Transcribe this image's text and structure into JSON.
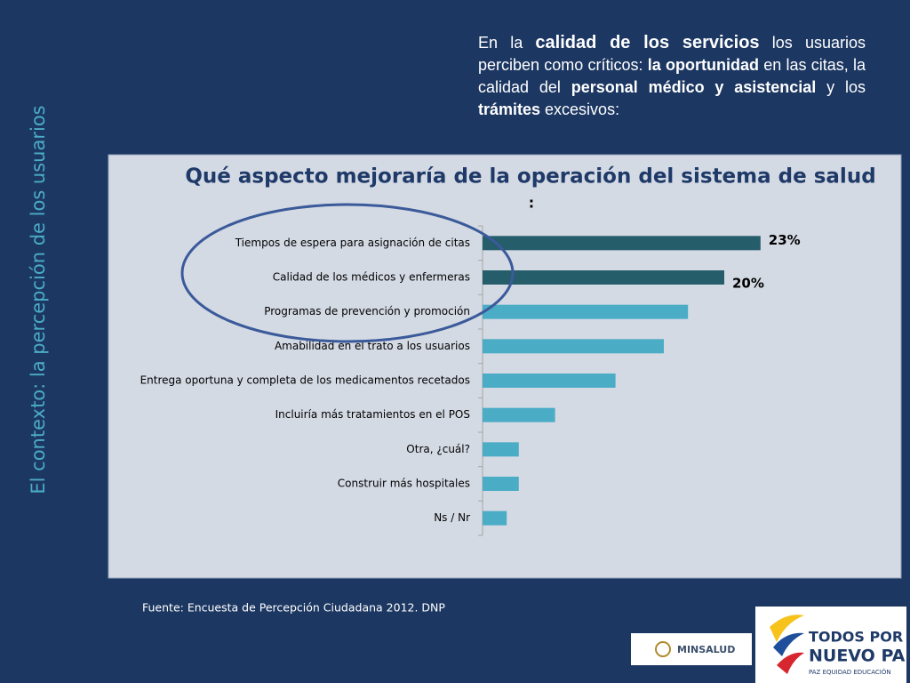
{
  "side_title": "El contexto: la percepción de los usuarios",
  "intro": {
    "segments": [
      {
        "text": "En la ",
        "bold": false
      },
      {
        "text": "calidad de los servicios",
        "bold": true
      },
      {
        "text": " los usuarios perciben  como críticos:  ",
        "bold": false
      },
      {
        "text": "la oportunidad",
        "bold": true
      },
      {
        "text": " en las citas, la calidad del ",
        "bold": false
      },
      {
        "text": "personal médico y asistencial",
        "bold": true
      },
      {
        "text": " y los ",
        "bold": false
      },
      {
        "text": "trámites",
        "bold": true
      },
      {
        "text": " excesivos:",
        "bold": false
      }
    ]
  },
  "chart_data": {
    "type": "hbar",
    "title": "Qué aspecto mejoraría de la operación del sistema de salud",
    "subtitle": ":",
    "categories": [
      "Tiempos de espera para asignación de citas",
      "Calidad de los médicos y enfermeras",
      "Programas de prevención y promoción",
      "Amabilidad en el trato a los usuarios",
      "Entrega oportuna y completa de los medicamentos recetados",
      "Incluiría más tratamientos en el POS",
      "Otra, ¿cuál?",
      "Construir más hospitales",
      "Ns / Nr"
    ],
    "values": [
      23,
      20,
      17,
      15,
      11,
      6,
      3,
      3,
      2
    ],
    "value_labels": [
      "23%",
      "20%",
      null,
      null,
      null,
      null,
      null,
      null,
      null
    ],
    "colors": [
      "#255d6b",
      "#255d6b",
      "#4bacc6",
      "#4bacc6",
      "#4bacc6",
      "#4bacc6",
      "#4bacc6",
      "#4bacc6",
      "#4bacc6"
    ],
    "xlim": [
      0,
      30
    ]
  },
  "source": "Fuente: Encuesta de Percepción Ciudadana 2012. DNP",
  "logos": {
    "minsalud": "MINSALUD",
    "slogan_line1": "TODOS POR UN",
    "slogan_line2": "NUEVO PAÍS",
    "slogan_line3": "PAZ  EQUIDAD  EDUCACIÓN"
  }
}
